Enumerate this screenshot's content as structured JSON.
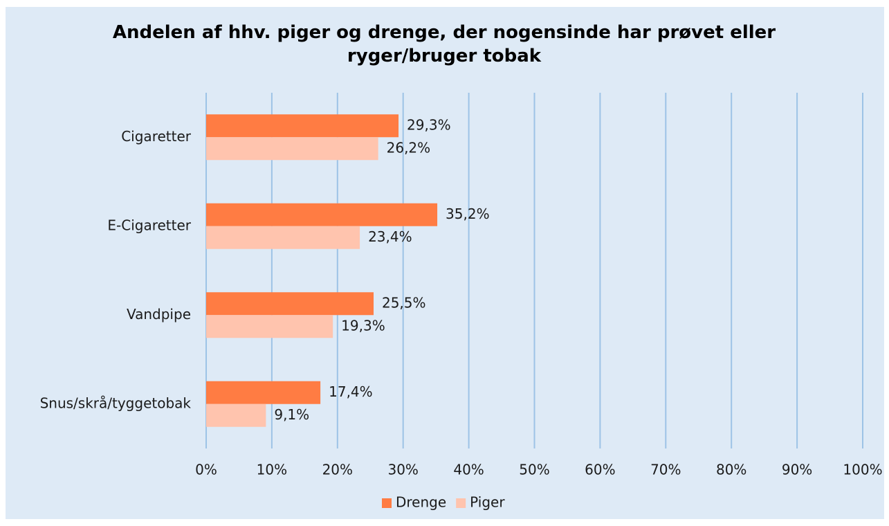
{
  "chart_data": {
    "type": "barh",
    "title": "Andelen af hhv. piger og drenge, der nogensinde har prøvet eller ryger/bruger tobak",
    "categories": [
      "Cigaretter",
      "E-Cigaretter",
      "Vandpipe",
      "Snus/skrå/tyggetobak"
    ],
    "series": [
      {
        "name": "Drenge",
        "color": "#ff7c43",
        "values": [
          29.3,
          35.2,
          25.5,
          17.4
        ],
        "value_labels": [
          "29,3%",
          "35,2%",
          "25,5%",
          "17,4%"
        ]
      },
      {
        "name": "Piger",
        "color": "#ffc4ae",
        "values": [
          26.2,
          23.4,
          19.3,
          9.1
        ],
        "value_labels": [
          "26,2%",
          "23,4%",
          "19,3%",
          "9,1%"
        ]
      }
    ],
    "xlim": [
      0,
      100
    ],
    "xticks": [
      {
        "value": 0,
        "label": "0%"
      },
      {
        "value": 10,
        "label": "10%"
      },
      {
        "value": 20,
        "label": "20%"
      },
      {
        "value": 30,
        "label": "30%"
      },
      {
        "value": 40,
        "label": "40%"
      },
      {
        "value": 50,
        "label": "50%"
      },
      {
        "value": 60,
        "label": "60%"
      },
      {
        "value": 70,
        "label": "70%"
      },
      {
        "value": 80,
        "label": "80%"
      },
      {
        "value": 90,
        "label": "90%"
      },
      {
        "value": 100,
        "label": "100%"
      }
    ],
    "grid": true,
    "legend": "bottom"
  }
}
